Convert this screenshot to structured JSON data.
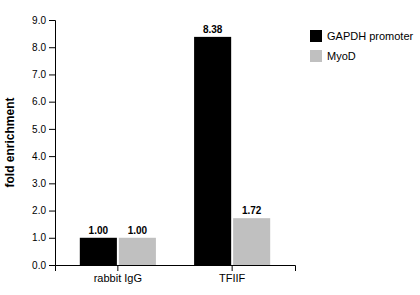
{
  "chart_data": {
    "type": "bar",
    "categories": [
      "rabbit IgG",
      "TFIIF"
    ],
    "series": [
      {
        "name": "GAPDH promoter",
        "color": "#000000",
        "values": [
          1.0,
          8.38
        ],
        "value_labels": [
          "1.00",
          "8.38"
        ]
      },
      {
        "name": "MyoD",
        "color": "#c0c0c0",
        "values": [
          1.0,
          1.72
        ],
        "value_labels": [
          "1.00",
          "1.72"
        ]
      }
    ],
    "ylabel": "fold enrichment",
    "ylim": [
      0,
      9.0
    ],
    "yticks": [
      {
        "value": 0.0,
        "label": "0.0"
      },
      {
        "value": 1.0,
        "label": "1.0"
      },
      {
        "value": 2.0,
        "label": "2.0"
      },
      {
        "value": 3.0,
        "label": "3.0"
      },
      {
        "value": 4.0,
        "label": "4.0"
      },
      {
        "value": 5.0,
        "label": "5.0"
      },
      {
        "value": 6.0,
        "label": "6.0"
      },
      {
        "value": 7.0,
        "label": "7.0"
      },
      {
        "value": 8.0,
        "label": "8.0"
      },
      {
        "value": 9.0,
        "label": "9.0"
      }
    ],
    "data_labels": true,
    "grid": false,
    "legend": "right"
  }
}
